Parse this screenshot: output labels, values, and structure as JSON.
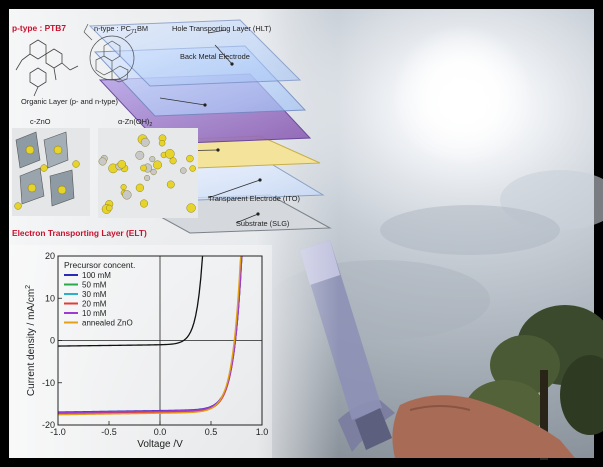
{
  "labels": {
    "ptype": "p-type : PTB7",
    "ntype": "n-type : PC",
    "ntype_sub": "71",
    "ntype_tail": "BM",
    "htl": "Hole Transporting Layer (HLT)",
    "back_metal": "Back Metal Electrode",
    "organic": "Organic Layer (p- and n-type)",
    "czno": "c-ZnO",
    "azno": "α-Zn(OH)",
    "azno_sub": "2",
    "tco": "Transparent Electrode (ITO)",
    "substrate": "Substrate (SLG)",
    "etl": "Electron Transporting Layer (ELT)"
  },
  "chart_data": {
    "type": "line",
    "title": "",
    "xlabel": "Voltage /V",
    "ylabel": "Current density / mA/cm",
    "ylabel_sup": "2",
    "xlim": [
      -1.0,
      1.0
    ],
    "ylim": [
      -20,
      20
    ],
    "x_ticks": [
      "-1.0",
      "-0.5",
      "0.0",
      "0.5",
      "1.0"
    ],
    "y_ticks": [
      "20",
      "10",
      "0",
      "-10",
      "-20"
    ],
    "legend_title": "Precursor concent.",
    "legend_position": "upper-left",
    "series": [
      {
        "name": "100 mM",
        "color": "#2b2bb8",
        "jsc": -16.6,
        "voc": 0.74,
        "ff": 0.66
      },
      {
        "name": "50 mM",
        "color": "#2aa84a",
        "jsc": -16.8,
        "voc": 0.74,
        "ff": 0.66
      },
      {
        "name": "30 mM",
        "color": "#2bb0c8",
        "jsc": -16.9,
        "voc": 0.74,
        "ff": 0.67
      },
      {
        "name": "20 mM",
        "color": "#e23a3a",
        "jsc": -17.0,
        "voc": 0.74,
        "ff": 0.67
      },
      {
        "name": "10 mM",
        "color": "#9b3bd4",
        "jsc": -16.7,
        "voc": 0.74,
        "ff": 0.66
      },
      {
        "name": "annealed ZnO",
        "color": "#e3a019",
        "jsc": -17.2,
        "voc": 0.73,
        "ff": 0.66
      }
    ],
    "extra_curve": {
      "color": "#111111",
      "jsc": -1.0,
      "voc": 0.63
    }
  }
}
